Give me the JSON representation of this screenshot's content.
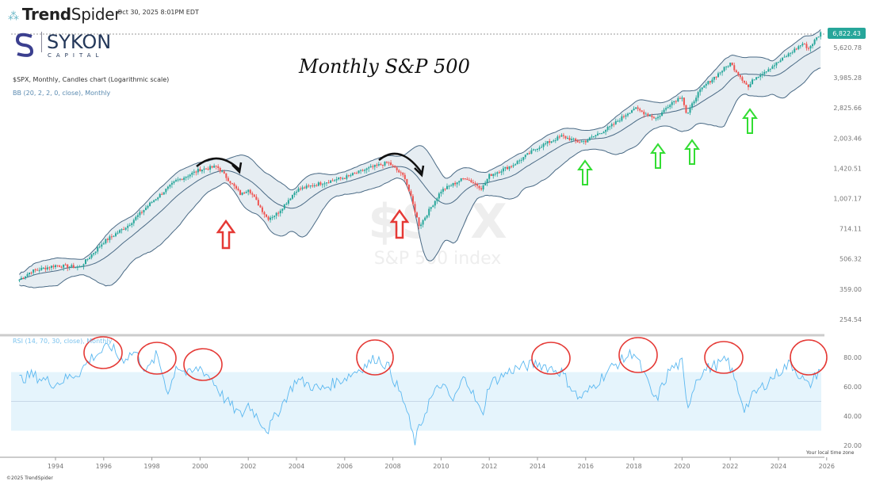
{
  "header": {
    "brand": "TrendSpider",
    "brand_bold": "Trend",
    "brand_light": "Spider",
    "timestamp": "Oct 30, 2025 8:01PM EDT"
  },
  "watermark_logo": {
    "name": "SYKON",
    "sub": "CAPITAL"
  },
  "chart_title": "Monthly S&P 500",
  "symbol_line": "$SPX, Monthly, Candles chart (Logarithmic scale)",
  "bb_line": "BB (20, 2, 2, 0, close), Monthly",
  "rsi_line": "RSI (14, 70, 30, close), Monthly",
  "watermark": {
    "symbol": "$SPX",
    "name": "S&P 500 index"
  },
  "footer": {
    "timezone": "Your local time zone",
    "copyright": "©2025 TrendSpider"
  },
  "colors": {
    "up": "#26a69a",
    "down": "#ef5350",
    "bb": "#4a6a85",
    "bbfill": "#e6edf2",
    "rsi": "#5bb8f0",
    "rsiband": "#e5f4fc",
    "last": "#26a69a",
    "annot_red": "#e53935",
    "annot_green": "#33dd33"
  },
  "chart_data": [
    {
      "type": "candlestick",
      "title": "Monthly S&P 500",
      "scale": "log",
      "y_ticks": [
        "5,620.78",
        "3,985.28",
        "2,825.66",
        "2,003.46",
        "1,420.51",
        "1,007.17",
        "714.11",
        "506.32",
        "359.00",
        "254.54"
      ],
      "last_price": "6,822.43",
      "x_ticks": [
        "1994",
        "1996",
        "1998",
        "2000",
        "2002",
        "2004",
        "2006",
        "2008",
        "2010",
        "2012",
        "2014",
        "2016",
        "2018",
        "2020",
        "2022",
        "2024",
        "2026"
      ],
      "close_anchors": [
        [
          1992.5,
          400
        ],
        [
          1993,
          440
        ],
        [
          1994,
          470
        ],
        [
          1995,
          460
        ],
        [
          1996,
          615
        ],
        [
          1997,
          740
        ],
        [
          1998,
          970
        ],
        [
          1999,
          1230
        ],
        [
          2000,
          1400
        ],
        [
          2000.7,
          1450
        ],
        [
          2001,
          1320
        ],
        [
          2001.7,
          1050
        ],
        [
          2002,
          1130
        ],
        [
          2002.8,
          800
        ],
        [
          2003.2,
          850
        ],
        [
          2004,
          1110
        ],
        [
          2005,
          1200
        ],
        [
          2006,
          1280
        ],
        [
          2007,
          1420
        ],
        [
          2007.8,
          1520
        ],
        [
          2008.5,
          1280
        ],
        [
          2009.1,
          735
        ],
        [
          2010,
          1100
        ],
        [
          2011,
          1280
        ],
        [
          2011.7,
          1130
        ],
        [
          2012,
          1310
        ],
        [
          2013,
          1480
        ],
        [
          2014,
          1800
        ],
        [
          2015,
          2050
        ],
        [
          2015.7,
          1920
        ],
        [
          2016,
          1940
        ],
        [
          2017,
          2270
        ],
        [
          2018,
          2820
        ],
        [
          2018.95,
          2500
        ],
        [
          2019.5,
          2980
        ],
        [
          2020,
          3230
        ],
        [
          2020.2,
          2580
        ],
        [
          2020.6,
          3270
        ],
        [
          2021,
          3700
        ],
        [
          2022,
          4700
        ],
        [
          2022.75,
          3580
        ],
        [
          2023,
          3970
        ],
        [
          2024,
          4770
        ],
        [
          2025,
          5880
        ],
        [
          2025.25,
          5570
        ],
        [
          2025.83,
          6822
        ]
      ],
      "overlay": "Bollinger Bands (20, 2)"
    },
    {
      "type": "line",
      "title": "RSI (14, 70, 30, close)",
      "y_ticks": [
        "80.00",
        "60.00",
        "40.00",
        "20.00"
      ],
      "bands": [
        30,
        70
      ],
      "midline": 50,
      "points": [
        [
          1992.5,
          65
        ],
        [
          1993,
          68
        ],
        [
          1994,
          62
        ],
        [
          1995,
          70
        ],
        [
          1995.5,
          80
        ],
        [
          1996.3,
          88
        ],
        [
          1996.7,
          78
        ],
        [
          1997.3,
          84
        ],
        [
          1997.8,
          70
        ],
        [
          1998.2,
          82
        ],
        [
          1998.7,
          55
        ],
        [
          1999,
          75
        ],
        [
          1999.5,
          68
        ],
        [
          2000,
          73
        ],
        [
          2000.5,
          65
        ],
        [
          2001,
          52
        ],
        [
          2001.7,
          40
        ],
        [
          2002,
          48
        ],
        [
          2002.8,
          30
        ],
        [
          2003.3,
          45
        ],
        [
          2004,
          65
        ],
        [
          2005,
          58
        ],
        [
          2006,
          66
        ],
        [
          2007,
          76
        ],
        [
          2007.3,
          80
        ],
        [
          2007.8,
          74
        ],
        [
          2008.5,
          48
        ],
        [
          2008.9,
          22
        ],
        [
          2009.5,
          50
        ],
        [
          2010,
          62
        ],
        [
          2010.5,
          50
        ],
        [
          2011,
          68
        ],
        [
          2011.7,
          40
        ],
        [
          2012,
          62
        ],
        [
          2013,
          72
        ],
        [
          2014,
          76
        ],
        [
          2015,
          70
        ],
        [
          2015.7,
          52
        ],
        [
          2016,
          55
        ],
        [
          2017,
          72
        ],
        [
          2018,
          84
        ],
        [
          2018.9,
          50
        ],
        [
          2019.5,
          72
        ],
        [
          2020,
          76
        ],
        [
          2020.2,
          45
        ],
        [
          2020.6,
          66
        ],
        [
          2021,
          72
        ],
        [
          2021.9,
          78
        ],
        [
          2022.6,
          45
        ],
        [
          2023,
          55
        ],
        [
          2024,
          70
        ],
        [
          2024.5,
          76
        ],
        [
          2025.25,
          60
        ],
        [
          2025.83,
          75
        ]
      ]
    }
  ]
}
